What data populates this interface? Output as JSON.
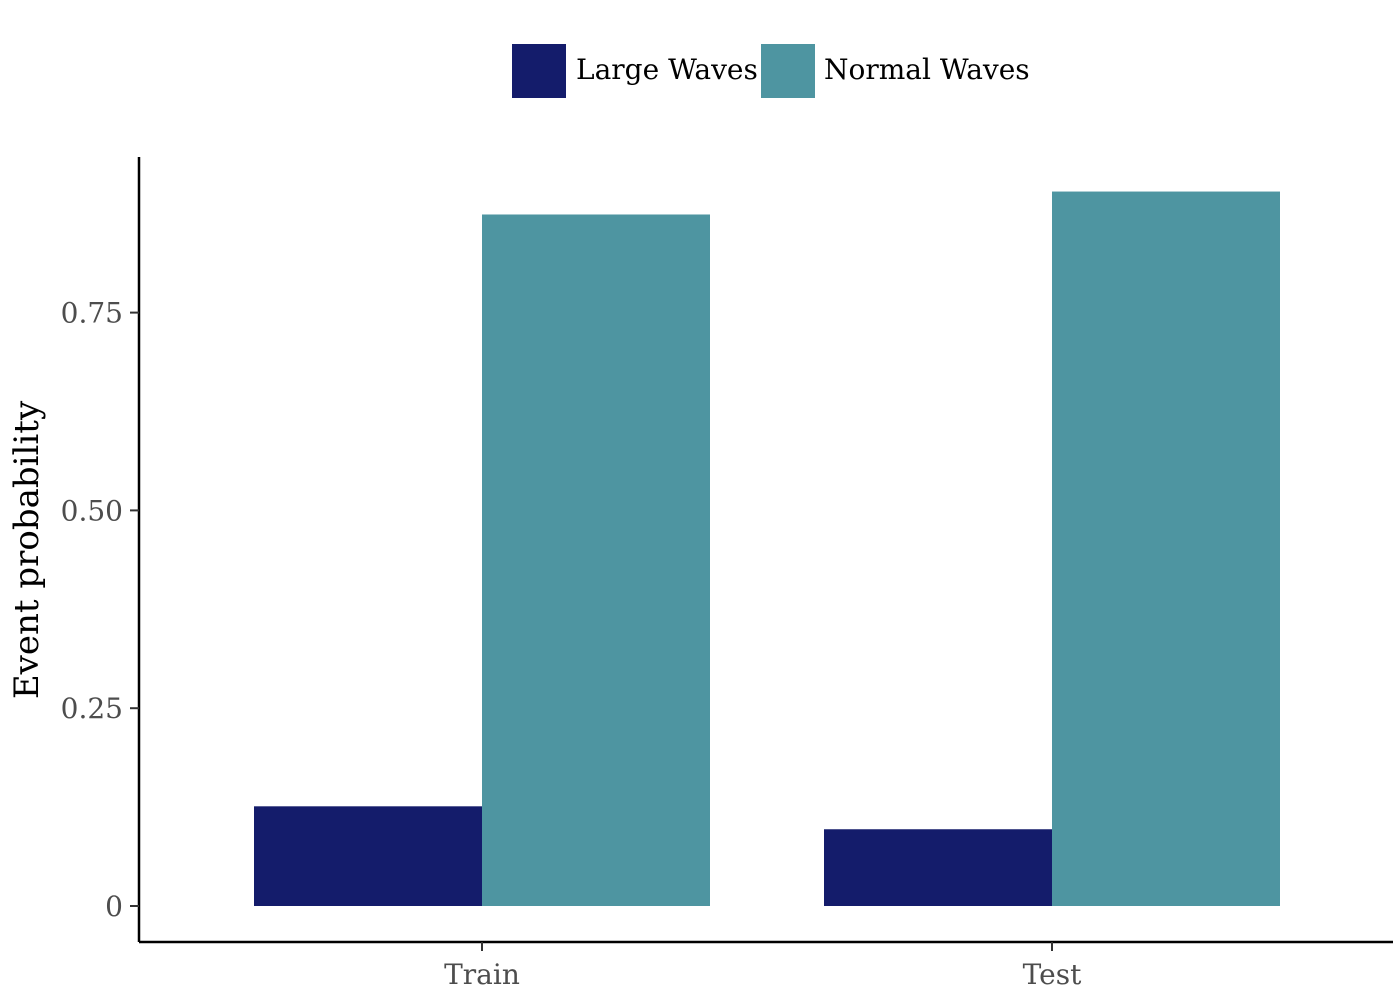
{
  "chart_data": {
    "type": "bar",
    "categories": [
      "Train",
      "Test"
    ],
    "series": [
      {
        "name": "Large Waves",
        "values": [
          0.126,
          0.097
        ],
        "color": "#141c6b"
      },
      {
        "name": "Normal Waves",
        "values": [
          0.874,
          0.903
        ],
        "color": "#4e95a1"
      }
    ],
    "xlabel": "",
    "ylabel": "Event probability",
    "ylim": [
      0,
      0.95
    ],
    "yticks": [
      0,
      0.25,
      0.5,
      0.75
    ],
    "ytick_labels": [
      "0",
      "0.25",
      "0.50",
      "0.75"
    ],
    "legend_position": "top",
    "grid": false
  }
}
